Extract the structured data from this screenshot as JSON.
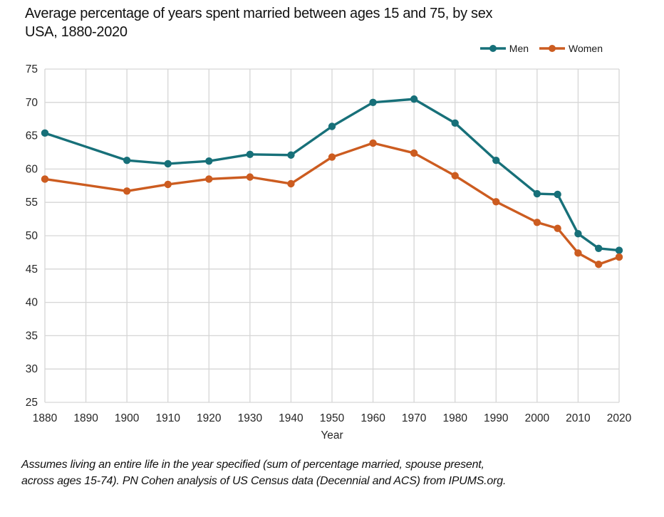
{
  "title": {
    "line1": "Average percentage of years spent married between ages 15 and 75, by sex",
    "line2": "USA, 1880-2020"
  },
  "legend": {
    "items": [
      {
        "label": "Men",
        "color": "#177079"
      },
      {
        "label": "Women",
        "color": "#cc5c20"
      }
    ]
  },
  "chart_data": {
    "type": "line",
    "x": [
      1880,
      1900,
      1910,
      1920,
      1930,
      1940,
      1950,
      1960,
      1970,
      1980,
      1990,
      2000,
      2005,
      2010,
      2015,
      2020
    ],
    "series": [
      {
        "name": "Men",
        "color": "#177079",
        "values": [
          65.4,
          61.3,
          60.8,
          61.2,
          62.2,
          62.1,
          66.4,
          70.0,
          70.5,
          66.9,
          61.3,
          56.3,
          56.2,
          50.3,
          48.1,
          47.8
        ]
      },
      {
        "name": "Women",
        "color": "#cc5c20",
        "values": [
          58.5,
          56.7,
          57.7,
          58.5,
          58.8,
          57.8,
          61.8,
          63.9,
          62.4,
          59.0,
          55.1,
          52.0,
          51.1,
          47.4,
          45.7,
          46.8
        ]
      }
    ],
    "title": "Average percentage of years spent married between ages 15 and 75, by sex — USA, 1880-2020",
    "xlabel": "Year",
    "ylabel": "",
    "xlim": [
      1880,
      2020
    ],
    "ylim": [
      25,
      75
    ],
    "x_ticks": [
      1880,
      1890,
      1900,
      1910,
      1920,
      1930,
      1940,
      1950,
      1960,
      1970,
      1980,
      1990,
      2000,
      2010,
      2020
    ],
    "y_ticks": [
      25,
      30,
      35,
      40,
      45,
      50,
      55,
      60,
      65,
      70,
      75
    ],
    "grid": true,
    "grid_color": "#d6d6d6",
    "legend_position": "top-right"
  },
  "footnote": {
    "line1": "Assumes living an entire life in the year specified (sum of percentage married, spouse present,",
    "line2": "across ages 15-74). PN Cohen analysis of US Census data (Decennial and ACS) from IPUMS.org."
  }
}
